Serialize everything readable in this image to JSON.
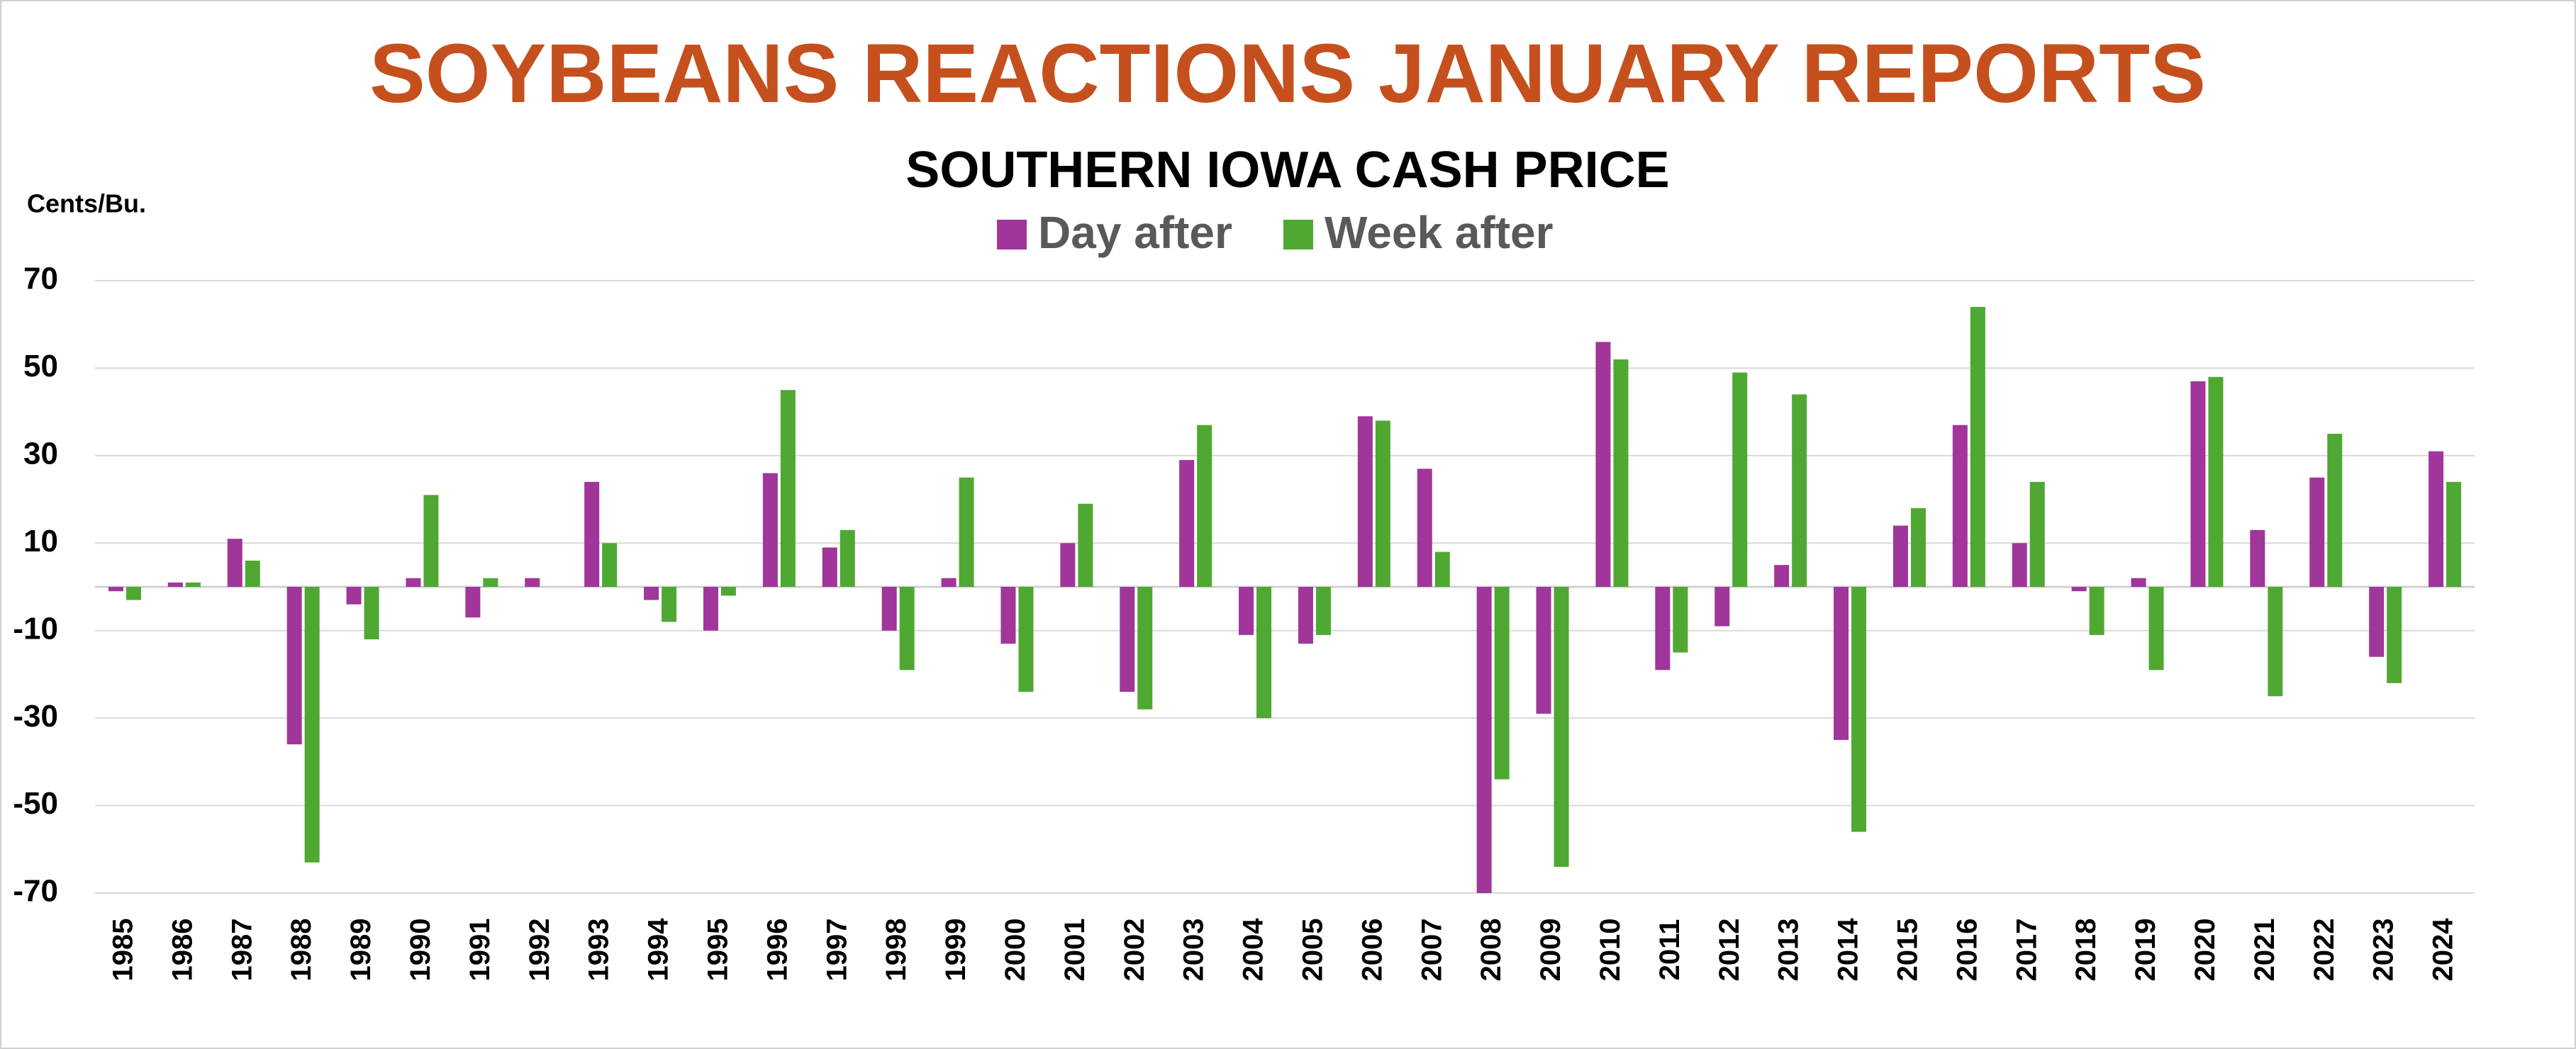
{
  "chart_data": {
    "type": "bar",
    "title": "SOYBEANS REACTIONS JANUARY REPORTS",
    "subtitle": "SOUTHERN IOWA CASH PRICE",
    "y_label": "Cents/Bu.",
    "categories": [
      "1985",
      "1986",
      "1987",
      "1988",
      "1989",
      "1990",
      "1991",
      "1992",
      "1993",
      "1994",
      "1995",
      "1996",
      "1997",
      "1998",
      "1999",
      "2000",
      "2001",
      "2002",
      "2003",
      "2004",
      "2005",
      "2006",
      "2007",
      "2008",
      "2009",
      "2010",
      "2011",
      "2012",
      "2013",
      "2014",
      "2015",
      "2016",
      "2017",
      "2018",
      "2019",
      "2020",
      "2021",
      "2022",
      "2023",
      "2024"
    ],
    "series": [
      {
        "name": "Day after",
        "color": "#a0369a",
        "values": [
          -1,
          1,
          11,
          -36,
          -4,
          2,
          -7,
          2,
          24,
          -3,
          -10,
          26,
          9,
          -10,
          2,
          -13,
          10,
          -24,
          29,
          -11,
          -13,
          39,
          27,
          -70,
          -29,
          56,
          -19,
          -9,
          5,
          -35,
          14,
          37,
          10,
          -1,
          2,
          47,
          13,
          25,
          -16,
          31
        ]
      },
      {
        "name": "Week after",
        "color": "#4fa832",
        "values": [
          -3,
          1,
          6,
          -63,
          -12,
          21,
          2,
          0,
          10,
          -8,
          -2,
          45,
          13,
          -19,
          25,
          -24,
          19,
          -28,
          37,
          -30,
          -11,
          38,
          8,
          -44,
          -64,
          52,
          -15,
          49,
          44,
          -56,
          18,
          64,
          24,
          -11,
          -19,
          48,
          -25,
          35,
          -22,
          24
        ]
      }
    ],
    "ylim": [
      -70,
      70
    ],
    "yticks": [
      -70,
      -50,
      -30,
      -10,
      10,
      30,
      50,
      70
    ],
    "grid": true
  }
}
